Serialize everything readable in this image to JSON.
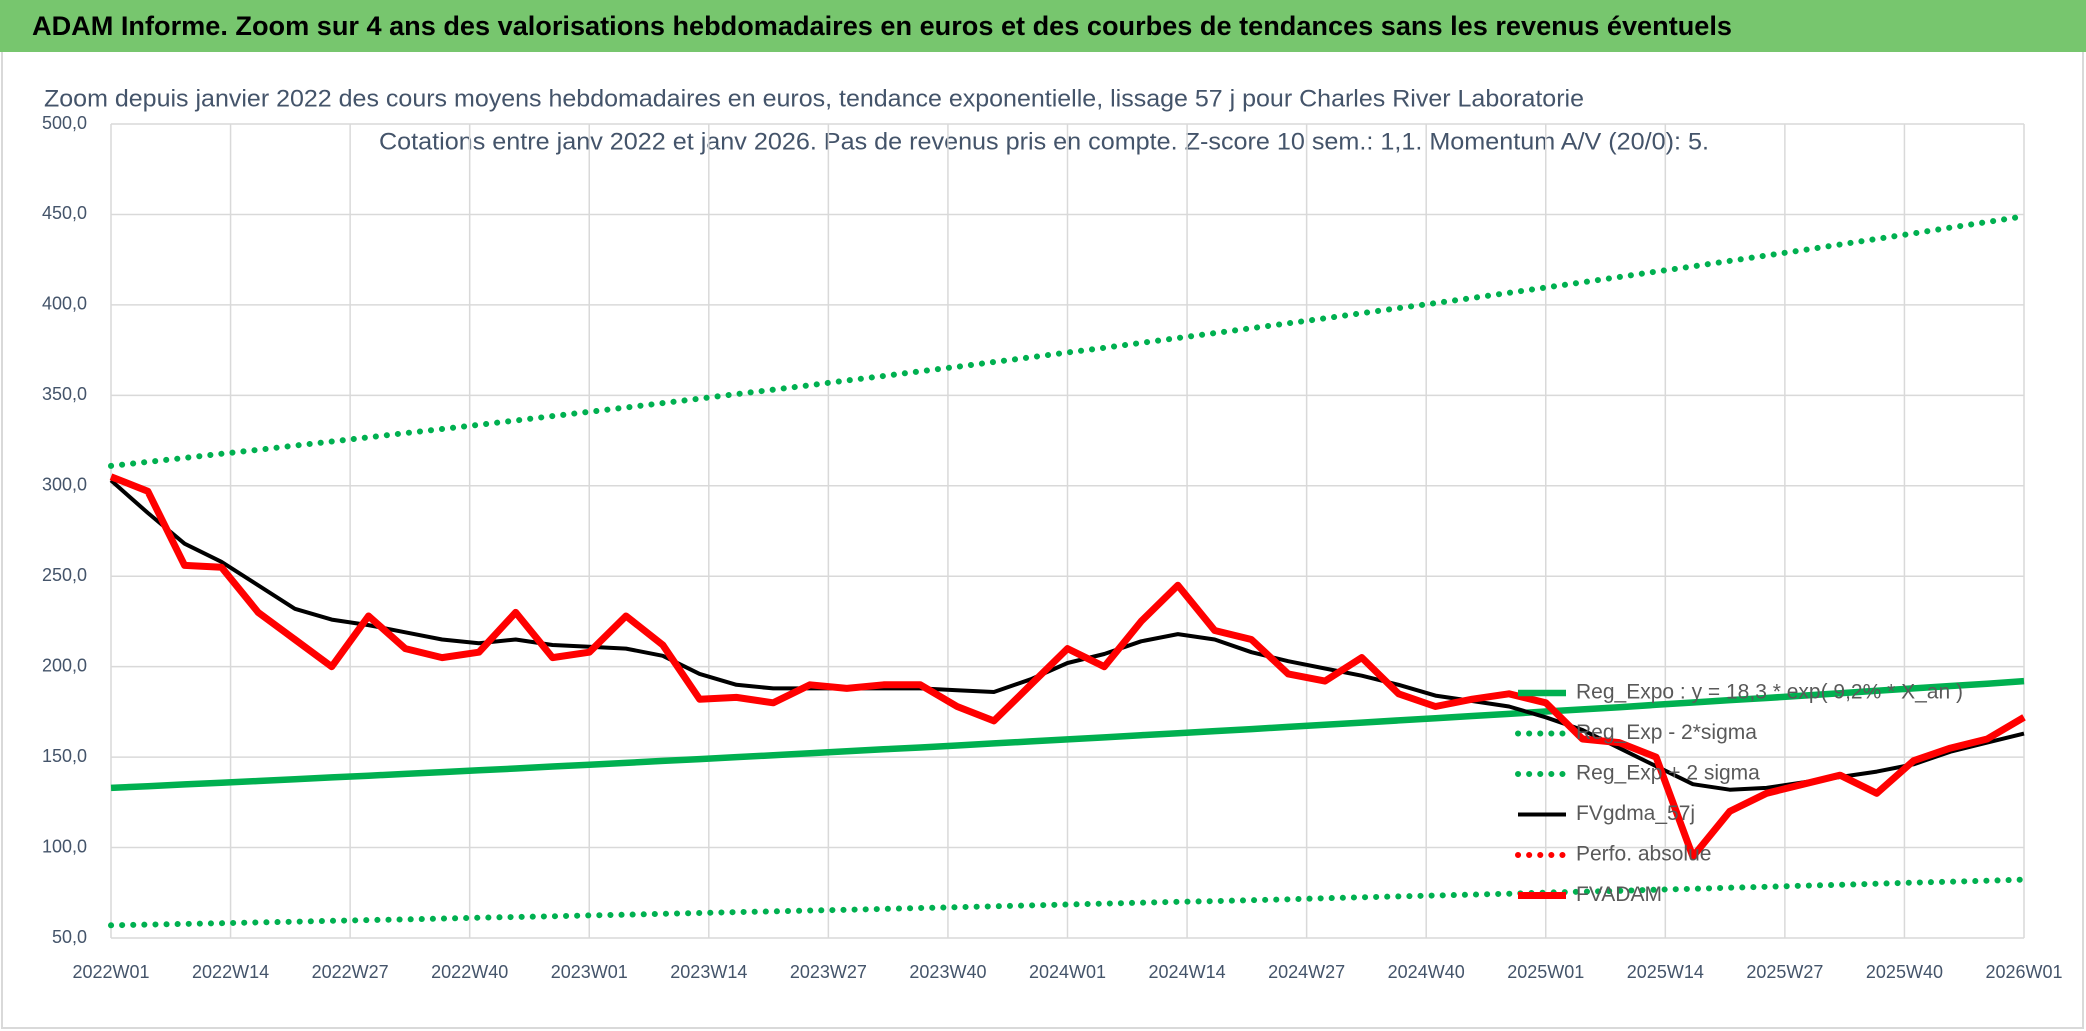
{
  "header": {
    "title": "ADAM Informe. Zoom sur 4 ans des valorisations hebdomadaires en euros et des courbes de tendances sans les revenus éventuels"
  },
  "chart_data": {
    "type": "line",
    "title": "Zoom depuis janvier 2022 des cours moyens hebdomadaires en euros, tendance exponentielle, lissage 57 j pour Charles River Laboratorie",
    "subtitle": "Cotations entre janv 2022 et janv 2026. Pas de revenus pris en compte. Z-score 10 sem.: 1,1. Momentum A/V (20/0): 5.",
    "x": [
      0,
      4,
      8,
      12,
      16,
      20,
      24,
      28,
      32,
      36,
      40,
      44,
      48,
      52,
      56,
      60,
      64,
      68,
      72,
      76,
      80,
      84,
      88,
      92,
      96,
      100,
      104,
      108,
      112,
      116,
      120,
      124,
      128,
      132,
      136,
      140,
      144,
      148,
      152,
      156,
      160,
      164,
      168,
      172,
      176,
      180,
      184,
      188,
      192,
      196,
      200,
      204,
      208
    ],
    "xlim": [
      0,
      208
    ],
    "xticks": [
      {
        "value": 0,
        "label": "2022W01"
      },
      {
        "value": 13,
        "label": "2022W14"
      },
      {
        "value": 26,
        "label": "2022W27"
      },
      {
        "value": 39,
        "label": "2022W40"
      },
      {
        "value": 52,
        "label": "2023W01"
      },
      {
        "value": 65,
        "label": "2023W14"
      },
      {
        "value": 78,
        "label": "2023W27"
      },
      {
        "value": 91,
        "label": "2023W40"
      },
      {
        "value": 104,
        "label": "2024W01"
      },
      {
        "value": 117,
        "label": "2024W14"
      },
      {
        "value": 130,
        "label": "2024W27"
      },
      {
        "value": 143,
        "label": "2024W40"
      },
      {
        "value": 156,
        "label": "2025W01"
      },
      {
        "value": 169,
        "label": "2025W14"
      },
      {
        "value": 182,
        "label": "2025W27"
      },
      {
        "value": 195,
        "label": "2025W40"
      },
      {
        "value": 208,
        "label": "2026W01"
      }
    ],
    "ylim": [
      50,
      500
    ],
    "yticks": [
      {
        "value": 50,
        "label": "50,0"
      },
      {
        "value": 100,
        "label": "100,0"
      },
      {
        "value": 150,
        "label": "150,0"
      },
      {
        "value": 200,
        "label": "200,0"
      },
      {
        "value": 250,
        "label": "250,0"
      },
      {
        "value": 300,
        "label": "300,0"
      },
      {
        "value": 350,
        "label": "350,0"
      },
      {
        "value": 400,
        "label": "400,0"
      },
      {
        "value": 450,
        "label": "450,0"
      },
      {
        "value": 500,
        "label": "500,0"
      }
    ],
    "grid": true,
    "series": [
      {
        "name": "Reg_Expo : y = 18,3 * exp( 9,2% * X_an )",
        "color": "#00b050",
        "style": "solid",
        "values": [
          133.0,
          133.9,
          134.9,
          135.8,
          136.8,
          137.8,
          138.8,
          139.7,
          140.7,
          141.7,
          142.7,
          143.7,
          144.8,
          145.8,
          146.8,
          147.9,
          148.9,
          150.0,
          151.0,
          152.1,
          153.2,
          154.3,
          155.3,
          156.4,
          157.6,
          158.7,
          159.8,
          160.9,
          162.1,
          163.2,
          164.4,
          165.5,
          166.7,
          167.9,
          169.1,
          170.3,
          171.5,
          172.7,
          173.9,
          175.2,
          176.4,
          177.6,
          178.9,
          180.2,
          181.5,
          182.7,
          184.0,
          185.3,
          186.7,
          188.0,
          189.3,
          190.6,
          192.0
        ]
      },
      {
        "name": "Reg_Exp - 2*sigma",
        "color": "#00b050",
        "style": "dotted",
        "values": [
          57.0,
          57.4,
          57.8,
          58.2,
          58.6,
          59.0,
          59.5,
          59.9,
          60.3,
          60.7,
          61.2,
          61.6,
          62.0,
          62.5,
          62.9,
          63.4,
          63.8,
          64.3,
          64.7,
          65.2,
          65.6,
          66.1,
          66.6,
          67.0,
          67.5,
          68.0,
          68.5,
          69.0,
          69.5,
          70.0,
          70.4,
          70.9,
          71.4,
          72.0,
          72.5,
          73.0,
          73.5,
          74.0,
          74.5,
          75.1,
          75.6,
          76.1,
          76.7,
          77.2,
          77.8,
          78.3,
          78.9,
          79.4,
          80.0,
          80.6,
          81.1,
          81.7,
          82.3
        ]
      },
      {
        "name": "Reg_Exp + 2 sigma",
        "color": "#00b050",
        "style": "dotted",
        "values": [
          311,
          313.2,
          315.4,
          317.7,
          319.9,
          322.2,
          324.5,
          326.8,
          329.1,
          331.4,
          333.7,
          336.1,
          338.5,
          340.9,
          343.3,
          345.7,
          348.2,
          350.7,
          353.1,
          355.6,
          358.2,
          360.7,
          363.3,
          365.8,
          368.4,
          371.0,
          373.7,
          376.3,
          379.0,
          381.7,
          384.4,
          387.1,
          389.8,
          392.6,
          395.4,
          398.2,
          401.0,
          403.8,
          406.7,
          409.6,
          412.5,
          415.4,
          418.4,
          421.3,
          424.3,
          427.3,
          430.3,
          433.4,
          436.5,
          439.5,
          442.7,
          445.8,
          449.0
        ]
      },
      {
        "name": "FVgdma_57j",
        "color": "#000000",
        "style": "solid",
        "values": [
          303,
          285,
          268,
          258,
          245,
          232,
          226,
          223,
          219,
          215,
          213,
          215,
          212,
          211,
          210,
          206,
          196,
          190,
          188,
          188,
          188,
          188,
          188,
          187,
          186,
          193,
          202,
          207,
          214,
          218,
          215,
          208,
          203,
          199,
          195,
          190,
          184,
          181,
          178,
          172,
          165,
          155,
          145,
          135,
          132,
          133,
          136,
          139,
          142,
          146,
          153,
          158,
          163
        ]
      },
      {
        "name": "Perfo. absolue",
        "color": "#ff0000",
        "style": "dotted",
        "values": [
          null,
          null,
          null,
          null,
          null,
          null,
          null,
          null,
          null,
          null,
          null,
          null,
          null,
          null,
          null,
          null,
          null,
          null,
          null,
          null,
          null,
          null,
          null,
          null,
          null,
          null,
          null,
          null,
          null,
          null,
          null,
          null,
          null,
          null,
          null,
          null,
          null,
          null,
          null,
          null,
          null,
          null,
          null,
          null,
          null,
          null,
          null,
          null,
          null,
          null,
          null,
          null,
          null
        ]
      },
      {
        "name": "FVADAM",
        "color": "#ff0000",
        "style": "thick",
        "values": [
          305,
          297,
          256,
          255,
          230,
          215,
          200,
          228,
          210,
          205,
          208,
          230,
          205,
          208,
          228,
          212,
          182,
          183,
          180,
          190,
          188,
          190,
          190,
          178,
          170,
          190,
          210,
          200,
          225,
          245,
          220,
          215,
          196,
          192,
          205,
          185,
          178,
          182,
          185,
          180,
          160,
          158,
          150,
          95,
          120,
          130,
          135,
          140,
          130,
          148,
          155,
          160,
          172
        ]
      }
    ]
  }
}
